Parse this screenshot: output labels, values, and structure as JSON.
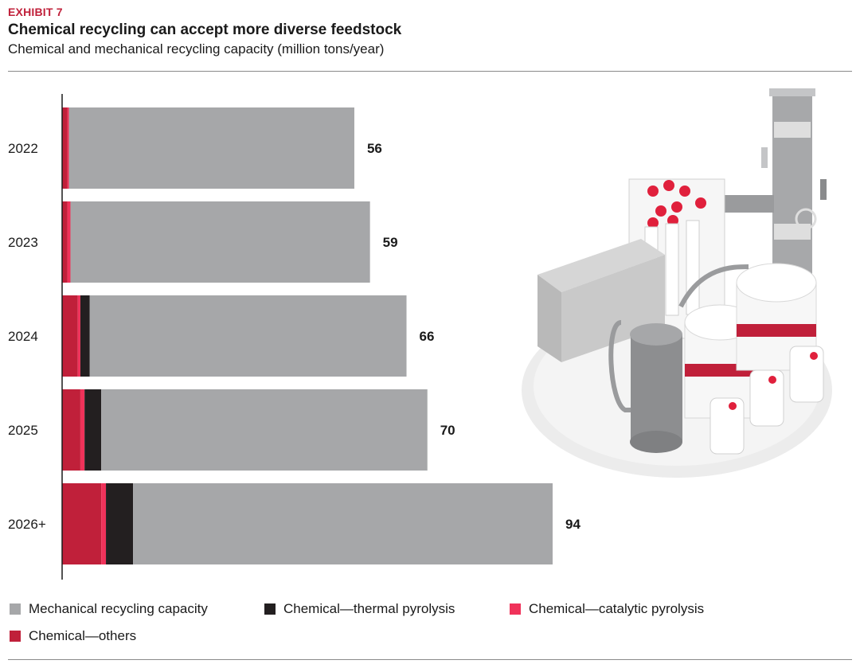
{
  "header": {
    "exhibit": "EXHIBIT 7",
    "title": "Chemical recycling can accept more diverse feedstock",
    "subtitle": "Chemical and mechanical recycling capacity (million tons/year)"
  },
  "colors": {
    "mechanical": "#a6a7a9",
    "thermal": "#231f20",
    "catalytic": "#f0325a",
    "others": "#c0203a",
    "exhibit": "#c0203a"
  },
  "chart_data": {
    "type": "bar",
    "orientation": "horizontal",
    "stacked": true,
    "title": "Chemical recycling can accept more diverse feedstock",
    "subtitle": "Chemical and mechanical recycling capacity (million tons/year)",
    "categories": [
      "2022",
      "2023",
      "2024",
      "2025",
      "2026+"
    ],
    "totals": [
      56,
      59,
      66,
      70,
      94
    ],
    "total_labels": [
      "56",
      "59",
      "66",
      "70",
      "94"
    ],
    "xlim": [
      0,
      94
    ],
    "grid": false,
    "legend_position": "bottom",
    "series": [
      {
        "name": "Chemical—others",
        "color": "#c0203a",
        "values": [
          1.0,
          1.0,
          3.0,
          3.5,
          7.5
        ]
      },
      {
        "name": "Chemical—catalytic pyrolysis",
        "color": "#f0325a",
        "values": [
          0.3,
          0.6,
          0.5,
          0.8,
          0.9
        ]
      },
      {
        "name": "Chemical—thermal pyrolysis",
        "color": "#231f20",
        "values": [
          0,
          0,
          1.8,
          3.2,
          5.2
        ]
      },
      {
        "name": "Mechanical recycling capacity",
        "color": "#a6a7a9",
        "values": [
          54.7,
          57.4,
          60.7,
          62.5,
          80.4
        ]
      }
    ]
  },
  "legend": {
    "items": [
      {
        "label": "Mechanical recycling capacity",
        "color": "#a6a7a9"
      },
      {
        "label": "Chemical—thermal pyrolysis",
        "color": "#231f20"
      },
      {
        "label": "Chemical—catalytic pyrolysis",
        "color": "#f0325a"
      },
      {
        "label": "Chemical—others",
        "color": "#c0203a"
      }
    ]
  }
}
